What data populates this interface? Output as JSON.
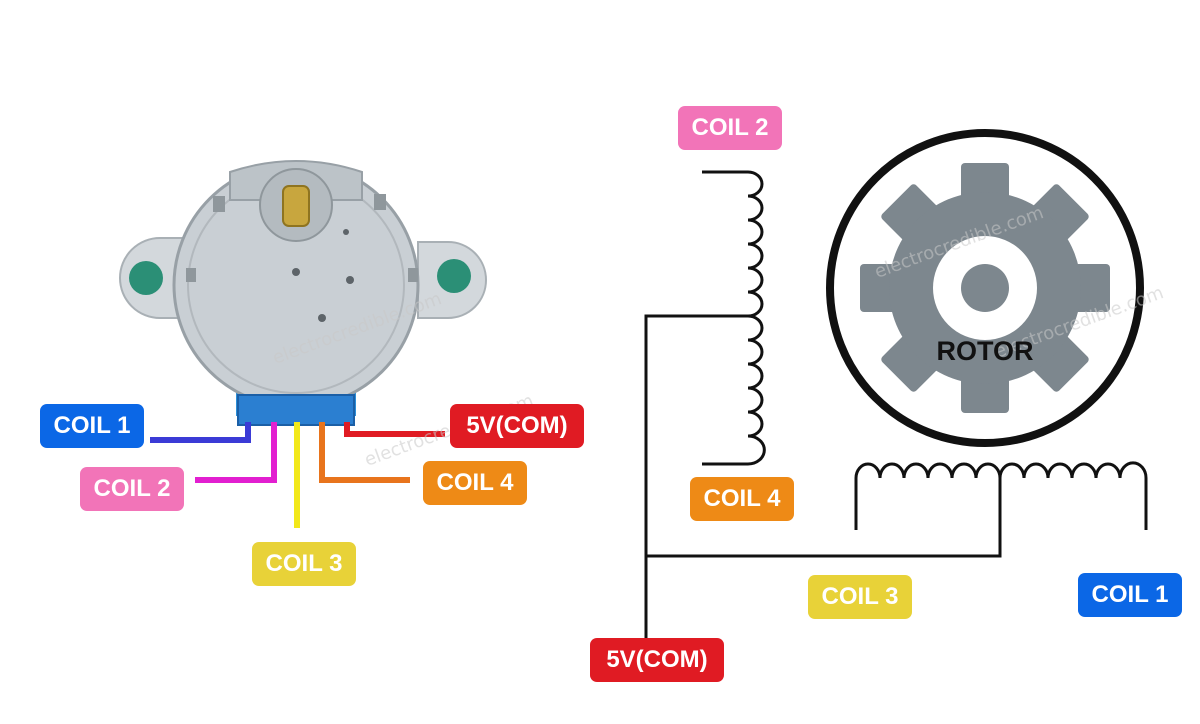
{
  "labels": {
    "left_coil1": "COIL 1",
    "left_coil2": "COIL 2",
    "left_coil3": "COIL 3",
    "left_coil4": "COIL 4",
    "left_com": "5V(COM)",
    "right_coil2": "COIL 2",
    "right_coil4": "COIL 4",
    "right_coil3": "COIL 3",
    "right_coil1": "COIL 1",
    "right_com": "5V(COM)",
    "rotor": "ROTOR"
  },
  "watermark": "electrocredible.com",
  "colors": {
    "coil1": "#0b67e6",
    "coil2": "#f274b8",
    "coil2_wire": "#e21fd0",
    "coil3": "#e8d238",
    "coil3_wire": "#f2e81a",
    "coil4": "#ee8a16",
    "coil4_wire": "#e8741c",
    "com": "#e01b23",
    "coil1_wire": "#3b3bd6",
    "gear": "#7d878e",
    "motor_body": "#c9cfd4",
    "motor_blue": "#2c8fd8"
  }
}
